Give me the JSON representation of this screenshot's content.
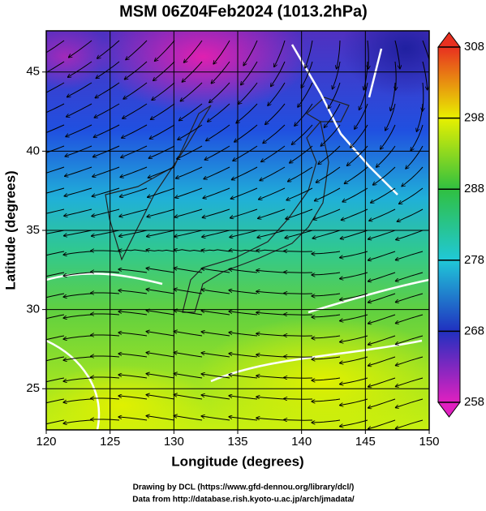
{
  "chart_data": {
    "type": "map",
    "title": "MSM 06Z04Feb2024 (1013.2hPa)",
    "x_label": "Longitude (degrees)",
    "y_label": "Latitude  (degrees)",
    "xlim": [
      120,
      150
    ],
    "xticks": [
      120,
      125,
      130,
      135,
      140,
      145,
      150
    ],
    "ylim": [
      22.4,
      47.6
    ],
    "yticks": [
      25,
      30,
      35,
      40,
      45
    ],
    "grid": true,
    "colorbar": {
      "lim": [
        258,
        308
      ],
      "ticks": [
        258,
        268,
        278,
        288,
        298,
        308
      ],
      "colors": [
        "#e020c0",
        "#2030c0",
        "#20c8d8",
        "#30c040",
        "#e8f000",
        "#e83020"
      ]
    },
    "footer": [
      "Drawing by DCL (https://www.gfd-dennou.org/library/dcl/)",
      "Data from http://database.rish.kyoto-u.ac.jp/arch/jmadata/"
    ]
  }
}
